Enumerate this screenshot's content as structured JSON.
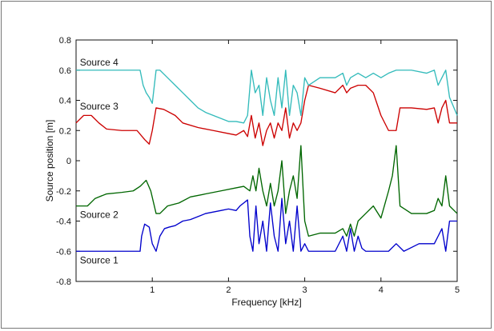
{
  "chart_data": {
    "type": "line",
    "title": "",
    "xlabel": "Frequency [kHz]",
    "ylabel": "Source position [m]",
    "xlim": [
      0,
      5
    ],
    "ylim": [
      -0.8,
      0.8
    ],
    "xticks": [
      "1",
      "2",
      "3",
      "4",
      "5"
    ],
    "yticks": [
      "0.8",
      "0.6",
      "0.4",
      "0.2",
      "0",
      "-0.2",
      "-0.4",
      "-0.6",
      "-0.8"
    ],
    "grid": false,
    "legend": "inline labels",
    "series": [
      {
        "name": "Source 1",
        "color": "#0000cc",
        "points": [
          [
            0.0,
            -0.6
          ],
          [
            0.84,
            -0.6
          ],
          [
            0.86,
            -0.5
          ],
          [
            0.9,
            -0.42
          ],
          [
            0.96,
            -0.44
          ],
          [
            1.0,
            -0.55
          ],
          [
            1.05,
            -0.6
          ],
          [
            1.1,
            -0.5
          ],
          [
            1.16,
            -0.45
          ],
          [
            1.22,
            -0.44
          ],
          [
            1.3,
            -0.43
          ],
          [
            1.4,
            -0.4
          ],
          [
            1.5,
            -0.39
          ],
          [
            1.6,
            -0.37
          ],
          [
            1.7,
            -0.35
          ],
          [
            1.8,
            -0.34
          ],
          [
            1.9,
            -0.33
          ],
          [
            2.0,
            -0.32
          ],
          [
            2.1,
            -0.33
          ],
          [
            2.15,
            -0.3
          ],
          [
            2.2,
            -0.28
          ],
          [
            2.25,
            -0.26
          ],
          [
            2.28,
            -0.5
          ],
          [
            2.32,
            -0.6
          ],
          [
            2.36,
            -0.3
          ],
          [
            2.4,
            -0.55
          ],
          [
            2.45,
            -0.4
          ],
          [
            2.5,
            -0.6
          ],
          [
            2.55,
            -0.28
          ],
          [
            2.6,
            -0.5
          ],
          [
            2.65,
            -0.6
          ],
          [
            2.7,
            -0.25
          ],
          [
            2.75,
            -0.55
          ],
          [
            2.8,
            -0.4
          ],
          [
            2.85,
            -0.6
          ],
          [
            2.9,
            -0.3
          ],
          [
            2.95,
            -0.6
          ],
          [
            3.0,
            -0.55
          ],
          [
            3.05,
            -0.6
          ],
          [
            3.2,
            -0.6
          ],
          [
            3.4,
            -0.6
          ],
          [
            3.5,
            -0.5
          ],
          [
            3.55,
            -0.6
          ],
          [
            3.6,
            -0.45
          ],
          [
            3.65,
            -0.6
          ],
          [
            3.7,
            -0.5
          ],
          [
            3.75,
            -0.58
          ],
          [
            3.8,
            -0.6
          ],
          [
            4.0,
            -0.6
          ],
          [
            4.1,
            -0.6
          ],
          [
            4.2,
            -0.55
          ],
          [
            4.3,
            -0.6
          ],
          [
            4.5,
            -0.55
          ],
          [
            4.7,
            -0.55
          ],
          [
            4.75,
            -0.5
          ],
          [
            4.8,
            -0.45
          ],
          [
            4.85,
            -0.6
          ],
          [
            4.9,
            -0.4
          ],
          [
            5.0,
            -0.4
          ]
        ]
      },
      {
        "name": "Source 2",
        "color": "#006600",
        "points": [
          [
            0.0,
            -0.3
          ],
          [
            0.15,
            -0.3
          ],
          [
            0.25,
            -0.25
          ],
          [
            0.4,
            -0.22
          ],
          [
            0.6,
            -0.21
          ],
          [
            0.75,
            -0.2
          ],
          [
            0.84,
            -0.17
          ],
          [
            0.88,
            -0.15
          ],
          [
            0.92,
            -0.13
          ],
          [
            0.98,
            -0.2
          ],
          [
            1.05,
            -0.35
          ],
          [
            1.1,
            -0.35
          ],
          [
            1.2,
            -0.3
          ],
          [
            1.35,
            -0.28
          ],
          [
            1.5,
            -0.24
          ],
          [
            1.7,
            -0.22
          ],
          [
            1.9,
            -0.2
          ],
          [
            2.1,
            -0.18
          ],
          [
            2.2,
            -0.17
          ],
          [
            2.28,
            -0.2
          ],
          [
            2.32,
            -0.1
          ],
          [
            2.36,
            -0.2
          ],
          [
            2.4,
            -0.05
          ],
          [
            2.45,
            -0.2
          ],
          [
            2.5,
            -0.3
          ],
          [
            2.55,
            -0.15
          ],
          [
            2.6,
            -0.3
          ],
          [
            2.65,
            -0.2
          ],
          [
            2.7,
            -0.0
          ],
          [
            2.75,
            -0.35
          ],
          [
            2.8,
            -0.2
          ],
          [
            2.85,
            -0.1
          ],
          [
            2.9,
            -0.25
          ],
          [
            2.95,
            0.1
          ],
          [
            3.0,
            -0.4
          ],
          [
            3.05,
            -0.5
          ],
          [
            3.2,
            -0.48
          ],
          [
            3.4,
            -0.48
          ],
          [
            3.5,
            -0.45
          ],
          [
            3.55,
            -0.5
          ],
          [
            3.6,
            -0.42
          ],
          [
            3.65,
            -0.5
          ],
          [
            3.7,
            -0.4
          ],
          [
            3.8,
            -0.35
          ],
          [
            3.9,
            -0.3
          ],
          [
            4.0,
            -0.38
          ],
          [
            4.1,
            -0.2
          ],
          [
            4.15,
            -0.1
          ],
          [
            4.2,
            0.1
          ],
          [
            4.25,
            -0.3
          ],
          [
            4.4,
            -0.35
          ],
          [
            4.6,
            -0.35
          ],
          [
            4.7,
            -0.33
          ],
          [
            4.75,
            -0.25
          ],
          [
            4.8,
            -0.3
          ],
          [
            4.85,
            -0.1
          ],
          [
            4.9,
            -0.3
          ],
          [
            5.0,
            -0.35
          ]
        ]
      },
      {
        "name": "Source 3",
        "color": "#cc0000",
        "points": [
          [
            0.0,
            0.25
          ],
          [
            0.1,
            0.3
          ],
          [
            0.2,
            0.3
          ],
          [
            0.3,
            0.25
          ],
          [
            0.4,
            0.21
          ],
          [
            0.6,
            0.2
          ],
          [
            0.8,
            0.2
          ],
          [
            0.9,
            0.14
          ],
          [
            0.96,
            0.11
          ],
          [
            1.0,
            0.2
          ],
          [
            1.05,
            0.35
          ],
          [
            1.15,
            0.34
          ],
          [
            1.3,
            0.3
          ],
          [
            1.4,
            0.25
          ],
          [
            1.6,
            0.22
          ],
          [
            1.8,
            0.2
          ],
          [
            2.0,
            0.18
          ],
          [
            2.1,
            0.17
          ],
          [
            2.2,
            0.2
          ],
          [
            2.25,
            0.16
          ],
          [
            2.3,
            0.3
          ],
          [
            2.35,
            0.15
          ],
          [
            2.4,
            0.25
          ],
          [
            2.45,
            0.1
          ],
          [
            2.5,
            0.2
          ],
          [
            2.55,
            0.25
          ],
          [
            2.6,
            0.15
          ],
          [
            2.65,
            0.25
          ],
          [
            2.7,
            0.2
          ],
          [
            2.75,
            0.35
          ],
          [
            2.8,
            0.15
          ],
          [
            2.85,
            0.25
          ],
          [
            2.9,
            0.2
          ],
          [
            2.95,
            0.25
          ],
          [
            3.0,
            0.4
          ],
          [
            3.05,
            0.5
          ],
          [
            3.2,
            0.48
          ],
          [
            3.4,
            0.45
          ],
          [
            3.5,
            0.5
          ],
          [
            3.55,
            0.45
          ],
          [
            3.6,
            0.48
          ],
          [
            3.7,
            0.5
          ],
          [
            3.8,
            0.5
          ],
          [
            3.9,
            0.45
          ],
          [
            4.0,
            0.3
          ],
          [
            4.1,
            0.2
          ],
          [
            4.2,
            0.2
          ],
          [
            4.25,
            0.35
          ],
          [
            4.4,
            0.35
          ],
          [
            4.6,
            0.34
          ],
          [
            4.7,
            0.35
          ],
          [
            4.75,
            0.25
          ],
          [
            4.8,
            0.35
          ],
          [
            4.85,
            0.4
          ],
          [
            4.9,
            0.25
          ],
          [
            5.0,
            0.25
          ]
        ]
      },
      {
        "name": "Source 4",
        "color": "#33bbbb",
        "points": [
          [
            0.0,
            0.6
          ],
          [
            0.84,
            0.6
          ],
          [
            0.88,
            0.5
          ],
          [
            0.92,
            0.45
          ],
          [
            0.96,
            0.42
          ],
          [
            1.0,
            0.38
          ],
          [
            1.05,
            0.6
          ],
          [
            1.1,
            0.6
          ],
          [
            1.2,
            0.55
          ],
          [
            1.3,
            0.5
          ],
          [
            1.4,
            0.45
          ],
          [
            1.5,
            0.4
          ],
          [
            1.6,
            0.35
          ],
          [
            1.7,
            0.32
          ],
          [
            1.8,
            0.3
          ],
          [
            1.9,
            0.28
          ],
          [
            2.0,
            0.26
          ],
          [
            2.1,
            0.26
          ],
          [
            2.2,
            0.25
          ],
          [
            2.25,
            0.3
          ],
          [
            2.3,
            0.6
          ],
          [
            2.35,
            0.45
          ],
          [
            2.4,
            0.5
          ],
          [
            2.45,
            0.3
          ],
          [
            2.5,
            0.55
          ],
          [
            2.55,
            0.4
          ],
          [
            2.6,
            0.3
          ],
          [
            2.65,
            0.55
          ],
          [
            2.7,
            0.35
          ],
          [
            2.75,
            0.6
          ],
          [
            2.8,
            0.3
          ],
          [
            2.85,
            0.5
          ],
          [
            2.9,
            0.45
          ],
          [
            2.95,
            0.3
          ],
          [
            3.0,
            0.55
          ],
          [
            3.05,
            0.5
          ],
          [
            3.2,
            0.55
          ],
          [
            3.4,
            0.55
          ],
          [
            3.5,
            0.58
          ],
          [
            3.55,
            0.5
          ],
          [
            3.6,
            0.55
          ],
          [
            3.7,
            0.58
          ],
          [
            3.8,
            0.55
          ],
          [
            3.9,
            0.58
          ],
          [
            4.0,
            0.55
          ],
          [
            4.1,
            0.58
          ],
          [
            4.2,
            0.6
          ],
          [
            4.4,
            0.6
          ],
          [
            4.6,
            0.58
          ],
          [
            4.7,
            0.6
          ],
          [
            4.75,
            0.5
          ],
          [
            4.8,
            0.55
          ],
          [
            4.85,
            0.6
          ],
          [
            4.9,
            0.42
          ],
          [
            5.0,
            0.3
          ]
        ]
      }
    ]
  }
}
